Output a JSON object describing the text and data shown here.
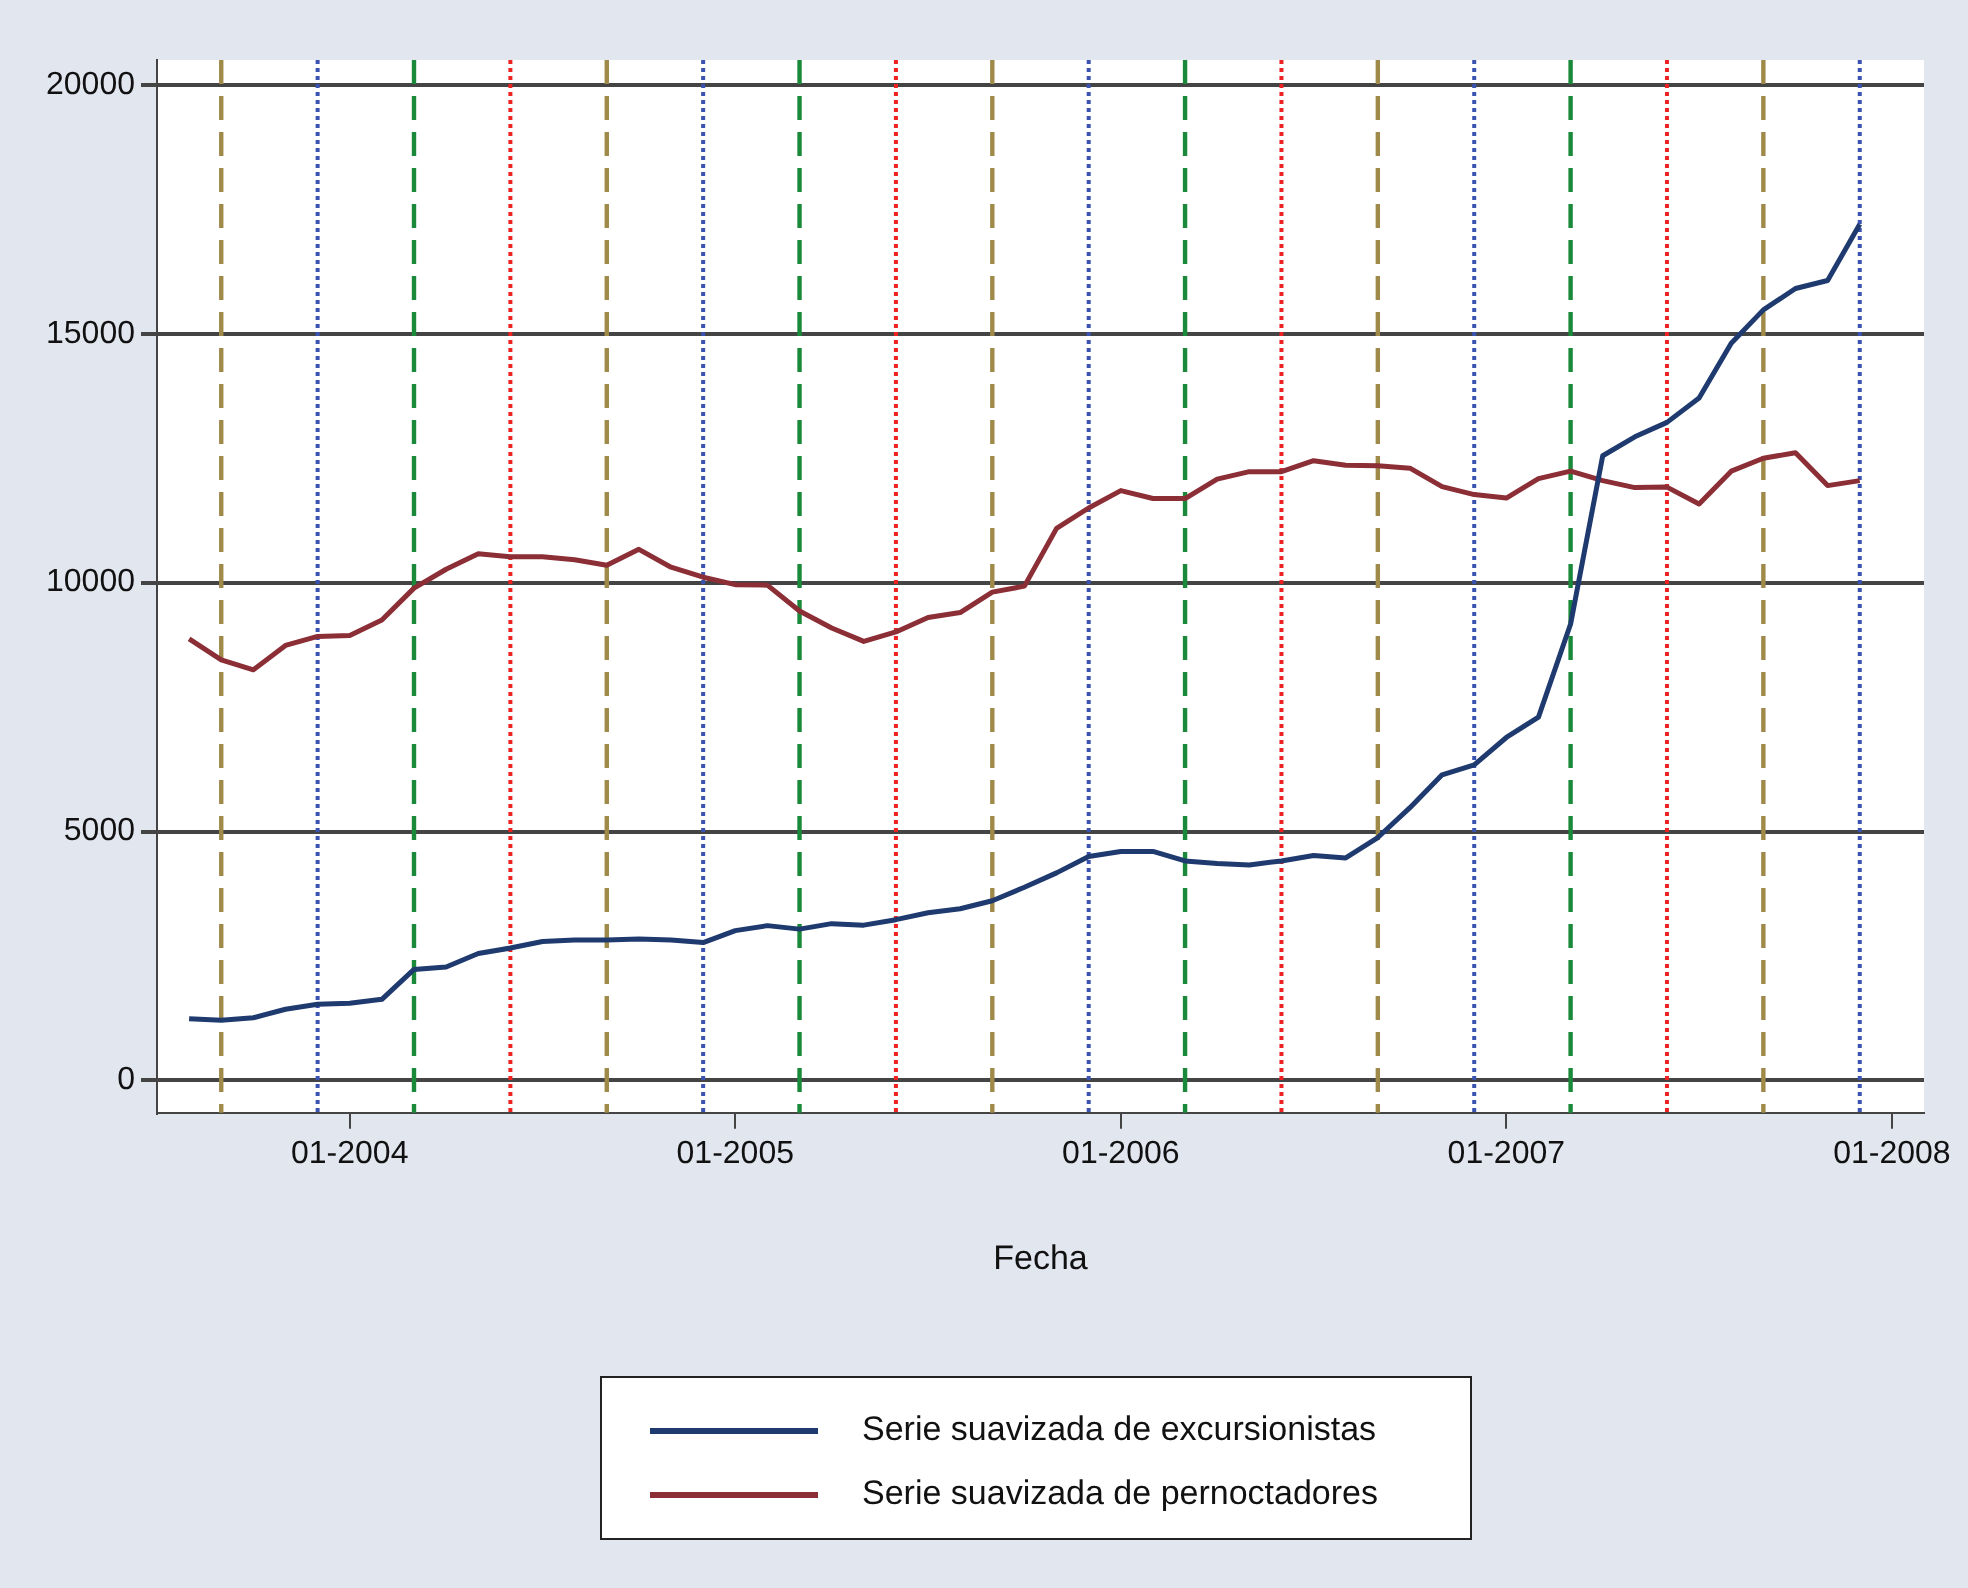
{
  "chart_data": {
    "type": "line",
    "xlabel": "Fecha",
    "x": [
      "2003-08",
      "2003-09",
      "2003-10",
      "2003-11",
      "2003-12",
      "2004-01",
      "2004-02",
      "2004-03",
      "2004-04",
      "2004-05",
      "2004-06",
      "2004-07",
      "2004-08",
      "2004-09",
      "2004-10",
      "2004-11",
      "2004-12",
      "2005-01",
      "2005-02",
      "2005-03",
      "2005-04",
      "2005-05",
      "2005-06",
      "2005-07",
      "2005-08",
      "2005-09",
      "2005-10",
      "2005-11",
      "2005-12",
      "2006-01",
      "2006-02",
      "2006-03",
      "2006-04",
      "2006-05",
      "2006-06",
      "2006-07",
      "2006-08",
      "2006-09",
      "2006-10",
      "2006-11",
      "2006-12",
      "2007-01",
      "2007-02",
      "2007-03",
      "2007-04",
      "2007-05",
      "2007-06",
      "2007-07",
      "2007-08",
      "2007-09",
      "2007-10",
      "2007-11",
      "2007-12"
    ],
    "series": [
      {
        "name": "Serie suavizada de excursionistas",
        "color": "#1f3a6e",
        "values": [
          1240,
          1210,
          1260,
          1430,
          1530,
          1550,
          1630,
          2230,
          2280,
          2550,
          2660,
          2790,
          2820,
          2820,
          2840,
          2820,
          2770,
          3010,
          3110,
          3040,
          3150,
          3120,
          3230,
          3370,
          3450,
          3610,
          3880,
          4170,
          4500,
          4600,
          4600,
          4410,
          4360,
          4330,
          4410,
          4520,
          4470,
          4880,
          5480,
          6140,
          6340,
          6890,
          7300,
          9170,
          12550,
          12930,
          13220,
          13710,
          14810,
          15480,
          15910,
          16070,
          17200
        ]
      },
      {
        "name": "Serie suavizada de pernoctadores",
        "color": "#8b2e35",
        "values": [
          8870,
          8450,
          8250,
          8740,
          8920,
          8940,
          9250,
          9890,
          10270,
          10580,
          10520,
          10520,
          10460,
          10350,
          10670,
          10310,
          10110,
          9960,
          9950,
          9430,
          9090,
          8820,
          9010,
          9300,
          9400,
          9810,
          9930,
          11090,
          11500,
          11850,
          11690,
          11690,
          12080,
          12230,
          12230,
          12450,
          12360,
          12350,
          12300,
          11930,
          11770,
          11700,
          12090,
          12240,
          12050,
          11910,
          11920,
          11580,
          12240,
          12500,
          12610,
          11950,
          12050
        ]
      }
    ],
    "xlim": [
      "2003-07",
      "2008-02"
    ],
    "xticks": [
      {
        "value": "2004-01",
        "label": "01-2004"
      },
      {
        "value": "2005-01",
        "label": "01-2005"
      },
      {
        "value": "2006-01",
        "label": "01-2006"
      },
      {
        "value": "2007-01",
        "label": "01-2007"
      },
      {
        "value": "2008-01",
        "label": "01-2008"
      }
    ],
    "ylim": [
      -650,
      20500
    ],
    "yticks": [
      0,
      5000,
      10000,
      15000,
      20000
    ],
    "grid": "y",
    "legend": "bottom",
    "marker": "none",
    "line_style": "solid",
    "ref_lines": [
      {
        "axis": "x",
        "value": "2003-09",
        "color": "#a08a4a",
        "line_style": "dashed"
      },
      {
        "axis": "x",
        "value": "2003-12",
        "color": "#3a52b0",
        "line_style": "dotted"
      },
      {
        "axis": "x",
        "value": "2004-03",
        "color": "#1a8a3a",
        "line_style": "dashed"
      },
      {
        "axis": "x",
        "value": "2004-06",
        "color": "#ee2222",
        "line_style": "dotted"
      },
      {
        "axis": "x",
        "value": "2004-09",
        "color": "#a08a4a",
        "line_style": "dashed"
      },
      {
        "axis": "x",
        "value": "2004-12",
        "color": "#3a52b0",
        "line_style": "dotted"
      },
      {
        "axis": "x",
        "value": "2005-03",
        "color": "#1a8a3a",
        "line_style": "dashed"
      },
      {
        "axis": "x",
        "value": "2005-06",
        "color": "#ee2222",
        "line_style": "dotted"
      },
      {
        "axis": "x",
        "value": "2005-09",
        "color": "#a08a4a",
        "line_style": "dashed"
      },
      {
        "axis": "x",
        "value": "2005-12",
        "color": "#3a52b0",
        "line_style": "dotted"
      },
      {
        "axis": "x",
        "value": "2006-03",
        "color": "#1a8a3a",
        "line_style": "dashed"
      },
      {
        "axis": "x",
        "value": "2006-06",
        "color": "#ee2222",
        "line_style": "dotted"
      },
      {
        "axis": "x",
        "value": "2006-09",
        "color": "#a08a4a",
        "line_style": "dashed"
      },
      {
        "axis": "x",
        "value": "2006-12",
        "color": "#3a52b0",
        "line_style": "dotted"
      },
      {
        "axis": "x",
        "value": "2007-03",
        "color": "#1a8a3a",
        "line_style": "dashed"
      },
      {
        "axis": "x",
        "value": "2007-06",
        "color": "#ee2222",
        "line_style": "dotted"
      },
      {
        "axis": "x",
        "value": "2007-09",
        "color": "#a08a4a",
        "line_style": "dashed"
      },
      {
        "axis": "x",
        "value": "2007-12",
        "color": "#3a52b0",
        "line_style": "dotted"
      }
    ]
  }
}
